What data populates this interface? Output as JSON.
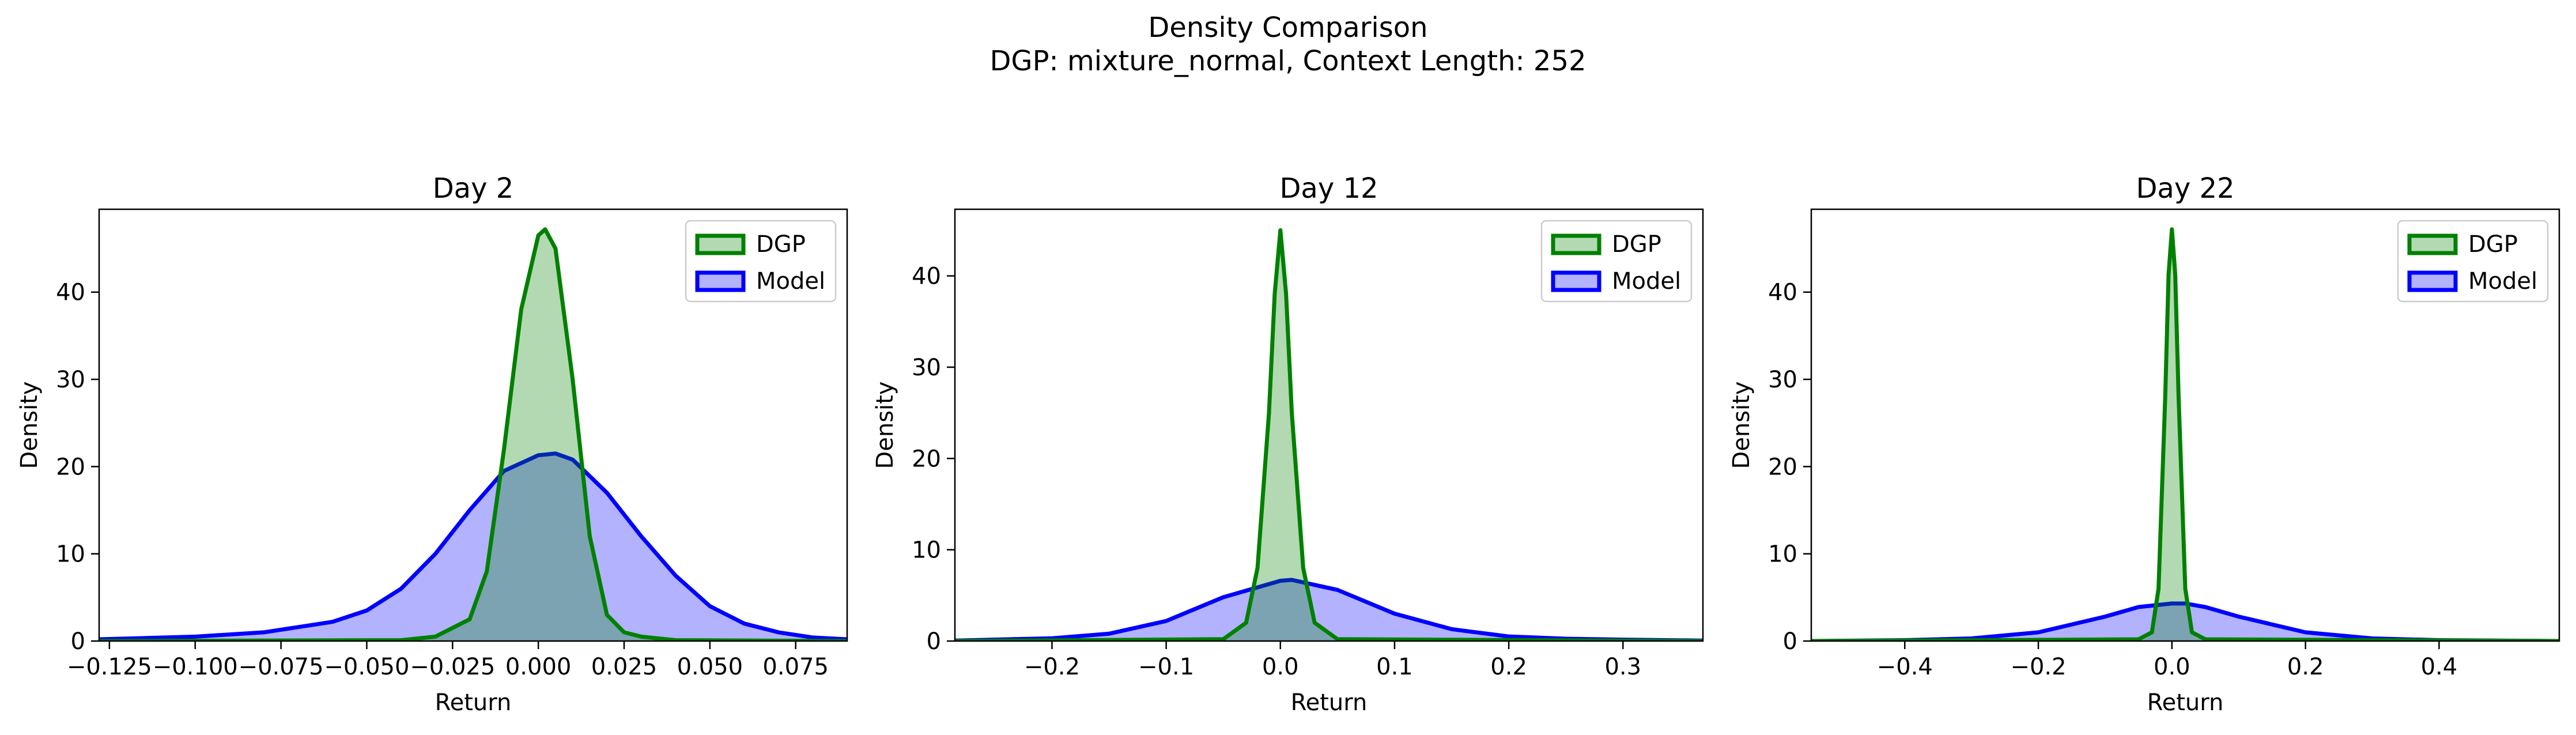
{
  "figure": {
    "title": "Density Comparison",
    "subtitle": "DGP: mixture_normal, Context Length: 252"
  },
  "colors": {
    "dgp_line": "#008000",
    "dgp_fill": "#008000",
    "model_line": "#0000ff",
    "model_fill": "#0000ff"
  },
  "chart_data": [
    {
      "type": "area",
      "title": "Day 2",
      "xlabel": "Return",
      "ylabel": "Density",
      "xlim": [
        -0.128,
        0.09
      ],
      "ylim": [
        0,
        49.5
      ],
      "xticks": [
        -0.125,
        -0.1,
        -0.075,
        -0.05,
        -0.025,
        0.0,
        0.025,
        0.05,
        0.075
      ],
      "xtick_labels": [
        "−0.125",
        "−0.100",
        "−0.075",
        "−0.050",
        "−0.025",
        "0.000",
        "0.025",
        "0.050",
        "0.075"
      ],
      "yticks": [
        0,
        10,
        20,
        30,
        40
      ],
      "ytick_labels": [
        "0",
        "10",
        "20",
        "30",
        "40"
      ],
      "legend": "top-right",
      "grid": false,
      "series": [
        {
          "name": "DGP",
          "x": [
            -0.128,
            -0.04,
            -0.03,
            -0.02,
            -0.015,
            -0.01,
            -0.005,
            0.0,
            0.002,
            0.005,
            0.01,
            0.015,
            0.02,
            0.025,
            0.03,
            0.04,
            0.09
          ],
          "y": [
            0,
            0.1,
            0.5,
            2.5,
            8,
            22,
            38,
            46.5,
            47.2,
            45,
            30,
            12,
            3,
            1,
            0.5,
            0.1,
            0
          ]
        },
        {
          "name": "Model",
          "x": [
            -0.128,
            -0.1,
            -0.08,
            -0.06,
            -0.05,
            -0.04,
            -0.03,
            -0.02,
            -0.01,
            0.0,
            0.005,
            0.01,
            0.02,
            0.03,
            0.04,
            0.05,
            0.06,
            0.07,
            0.08,
            0.09
          ],
          "y": [
            0.2,
            0.5,
            1,
            2.2,
            3.5,
            6,
            10,
            15,
            19.5,
            21.3,
            21.5,
            20.8,
            17,
            12,
            7.5,
            4,
            2,
            1,
            0.4,
            0.2
          ]
        }
      ]
    },
    {
      "type": "area",
      "title": "Day 12",
      "xlabel": "Return",
      "ylabel": "Density",
      "xlim": [
        -0.285,
        0.37
      ],
      "ylim": [
        0,
        47.3
      ],
      "xticks": [
        -0.2,
        -0.1,
        0.0,
        0.1,
        0.2,
        0.3
      ],
      "xtick_labels": [
        "−0.2",
        "−0.1",
        "0.0",
        "0.1",
        "0.2",
        "0.3"
      ],
      "yticks": [
        0,
        10,
        20,
        30,
        40
      ],
      "ytick_labels": [
        "0",
        "10",
        "20",
        "30",
        "40"
      ],
      "legend": "top-right",
      "grid": false,
      "series": [
        {
          "name": "DGP",
          "x": [
            -0.285,
            -0.05,
            -0.03,
            -0.02,
            -0.01,
            -0.005,
            0.0,
            0.005,
            0.01,
            0.02,
            0.03,
            0.05,
            0.37
          ],
          "y": [
            0,
            0.2,
            2,
            8,
            25,
            38,
            45,
            38,
            25,
            8,
            2,
            0.2,
            0
          ]
        },
        {
          "name": "Model",
          "x": [
            -0.285,
            -0.2,
            -0.15,
            -0.1,
            -0.05,
            0.0,
            0.01,
            0.05,
            0.1,
            0.15,
            0.2,
            0.25,
            0.3,
            0.37
          ],
          "y": [
            0.05,
            0.3,
            0.8,
            2.2,
            4.8,
            6.6,
            6.7,
            5.6,
            3,
            1.3,
            0.5,
            0.25,
            0.15,
            0.05
          ]
        }
      ]
    },
    {
      "type": "area",
      "title": "Day 22",
      "xlabel": "Return",
      "ylabel": "Density",
      "xlim": [
        -0.54,
        0.58
      ],
      "ylim": [
        0,
        49.5
      ],
      "xticks": [
        -0.4,
        -0.2,
        0.0,
        0.2,
        0.4
      ],
      "xtick_labels": [
        "−0.4",
        "−0.2",
        "0.0",
        "0.2",
        "0.4"
      ],
      "yticks": [
        0,
        10,
        20,
        30,
        40
      ],
      "ytick_labels": [
        "0",
        "10",
        "20",
        "30",
        "40"
      ],
      "legend": "top-right",
      "grid": false,
      "series": [
        {
          "name": "DGP",
          "x": [
            -0.54,
            -0.05,
            -0.03,
            -0.02,
            -0.01,
            -0.005,
            0.0,
            0.005,
            0.01,
            0.02,
            0.03,
            0.05,
            0.58
          ],
          "y": [
            0,
            0.2,
            1,
            6,
            28,
            42,
            47.2,
            42,
            28,
            6,
            1,
            0.2,
            0
          ]
        },
        {
          "name": "Model",
          "x": [
            -0.54,
            -0.4,
            -0.3,
            -0.2,
            -0.1,
            -0.05,
            0.0,
            0.02,
            0.05,
            0.1,
            0.2,
            0.3,
            0.4,
            0.58
          ],
          "y": [
            0,
            0.1,
            0.3,
            1,
            2.8,
            3.9,
            4.3,
            4.3,
            3.9,
            2.8,
            1,
            0.3,
            0.1,
            0
          ]
        }
      ]
    }
  ]
}
